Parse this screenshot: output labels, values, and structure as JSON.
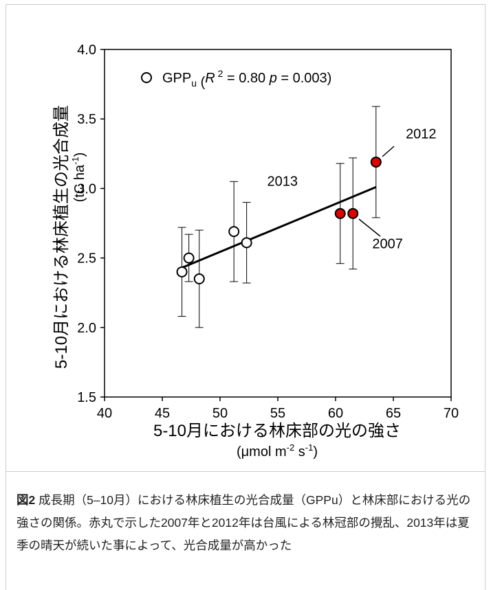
{
  "chart_data": {
    "type": "scatter",
    "x_label": {
      "main": "5-10月における林床部の光の強さ",
      "unit_parts": [
        "(μmol m",
        "-2",
        " s",
        "-1",
        ")"
      ]
    },
    "y_label": {
      "main": "5-10月における林床植生の光合成量",
      "unit_parts": [
        "(tC ha",
        "-1",
        ")"
      ]
    },
    "xlim": [
      40,
      70
    ],
    "xticks": [
      40,
      45,
      50,
      55,
      60,
      65,
      70
    ],
    "ylim": [
      1.5,
      4.0
    ],
    "yticks": [
      {
        "value": 1.5,
        "label": "1.5"
      },
      {
        "value": 2.0,
        "label": "2.0"
      },
      {
        "value": 2.5,
        "label": "2.5"
      },
      {
        "value": 3.0,
        "label": "3.0"
      },
      {
        "value": 3.5,
        "label": "3.5"
      },
      {
        "value": 4.0,
        "label": "4.0"
      }
    ],
    "legend_parts": [
      "GPP",
      "u",
      " (",
      "R",
      " 2",
      " = 0.80 ",
      "p",
      " = 0.003)"
    ],
    "series": [
      {
        "x": [
          46.7,
          47.3,
          48.2,
          51.2,
          52.3,
          60.4,
          61.5,
          63.5
        ],
        "values": [
          2.4,
          2.5,
          2.35,
          2.69,
          2.61,
          2.82,
          2.82,
          3.19
        ],
        "errors": [
          0.32,
          0.17,
          0.35,
          0.36,
          0.29,
          0.36,
          0.4,
          0.4
        ],
        "colors": [
          "#ffffff",
          "#ffffff",
          "#ffffff",
          "#ffffff",
          "#ffffff",
          "#e00000",
          "#e00000",
          "#e00000"
        ]
      }
    ],
    "fit": {
      "x": [
        46.7,
        63.5
      ],
      "values": [
        2.43,
        3.01
      ]
    },
    "annotations": [
      {
        "text": "2013",
        "x": 55.4,
        "y": 3.02
      },
      {
        "text": "2012",
        "x": 67.4,
        "y": 3.36
      },
      {
        "text": "2007",
        "x": 64.5,
        "y": 2.57
      }
    ],
    "caption": {
      "label": "図2",
      "text": " 成長期（5–10月）における林床植生の光合成量（GPPu）と林床部における光の強さの関係。赤丸で示した2007年と2012年は台風による林冠部の攪乱、2013年は夏季の晴天が続いた事によって、光合成量が高かった"
    }
  }
}
